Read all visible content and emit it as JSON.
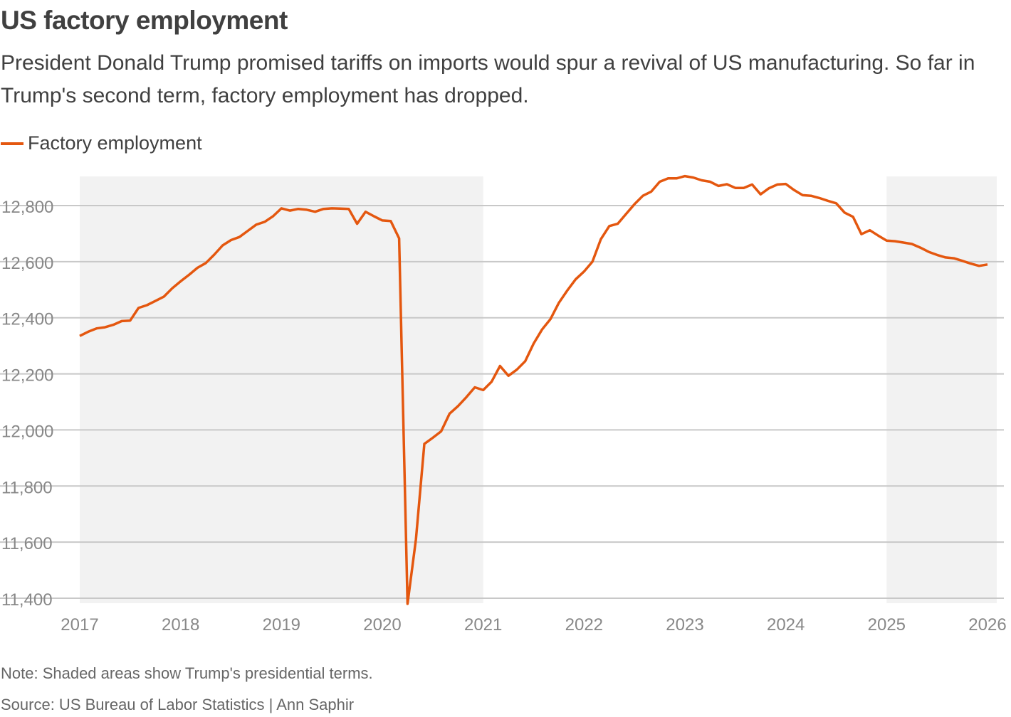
{
  "title": "US factory employment",
  "subtitle": "President Donald Trump promised tariffs on imports would spur a revival of US manufacturing. So far in Trump's second term, factory employment has dropped.",
  "note": "Note: Shaded areas show Trump's presidential terms.",
  "source": "Source: US Bureau of Labor Statistics | Ann Saphir",
  "colors": {
    "line": "#e4570f",
    "shade": "#f2f2f2",
    "grid": "#c8c8c8"
  },
  "chart_data": {
    "type": "line",
    "title": "US factory employment",
    "xlabel": "",
    "ylabel": "",
    "ylim": [
      11400,
      12900
    ],
    "xlim": [
      "2017-01",
      "2026-01"
    ],
    "grid": "horizontal",
    "legend": "top-left",
    "y_ticks": [
      "11,400",
      "11,600",
      "11,800",
      "12,000",
      "12,200",
      "12,400",
      "12,600",
      "12,800"
    ],
    "y_tick_values": [
      11400,
      11600,
      11800,
      12000,
      12200,
      12400,
      12600,
      12800
    ],
    "x_ticks": [
      "2017",
      "2018",
      "2019",
      "2020",
      "2021",
      "2022",
      "2023",
      "2024",
      "2025",
      "2026"
    ],
    "shaded_periods": [
      [
        "2017-01",
        "2021-01"
      ],
      [
        "2025-01",
        "2026-01"
      ]
    ],
    "series": [
      {
        "name": "Factory employment",
        "start": "2017-01",
        "frequency": "monthly",
        "values": [
          12335,
          12350,
          12362,
          12366,
          12375,
          12388,
          12390,
          12435,
          12445,
          12460,
          12475,
          12505,
          12530,
          12553,
          12578,
          12595,
          12625,
          12658,
          12677,
          12688,
          12710,
          12732,
          12742,
          12762,
          12790,
          12782,
          12788,
          12785,
          12778,
          12788,
          12790,
          12789,
          12788,
          12735,
          12778,
          12762,
          12747,
          12745,
          12683,
          11380,
          11610,
          11950,
          11972,
          11995,
          12058,
          12085,
          12117,
          12152,
          12142,
          12172,
          12228,
          12193,
          12215,
          12245,
          12308,
          12358,
          12395,
          12453,
          12497,
          12537,
          12565,
          12600,
          12680,
          12727,
          12735,
          12770,
          12805,
          12835,
          12850,
          12885,
          12897,
          12897,
          12905,
          12900,
          12890,
          12885,
          12870,
          12876,
          12863,
          12863,
          12875,
          12840,
          12862,
          12875,
          12877,
          12855,
          12837,
          12835,
          12827,
          12817,
          12808,
          12775,
          12760,
          12698,
          12712,
          12693,
          12675,
          12673,
          12668,
          12663,
          12650,
          12635,
          12624,
          12615,
          12612,
          12603,
          12593,
          12585,
          12590
        ]
      }
    ]
  }
}
